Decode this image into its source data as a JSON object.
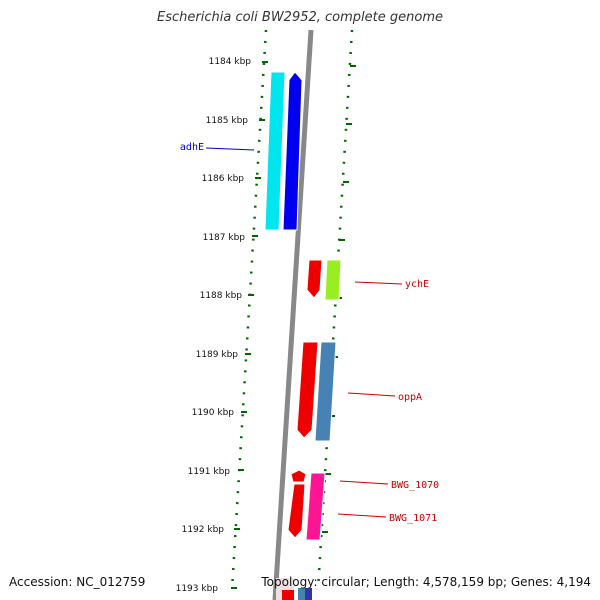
{
  "title": "Escherichia coli BW2952, complete genome",
  "footer": {
    "accession": "Accession: NC_012759",
    "topology": "Topology: circular; Length: 4,578,159 bp; Genes: 4,194"
  },
  "ticks": [
    "1184 kbp",
    "1185 kbp",
    "1186 kbp",
    "1187 kbp",
    "1188 kbp",
    "1189 kbp",
    "1190 kbp",
    "1191 kbp",
    "1192 kbp",
    "1193 kbp"
  ],
  "gene_labels": [
    {
      "text": "adhE",
      "color": "#0000cc"
    },
    {
      "text": "ychE",
      "color": "#cc0000"
    },
    {
      "text": "oppA",
      "color": "#cc0000"
    },
    {
      "text": "BWG_1070",
      "color": "#cc0000"
    },
    {
      "text": "BWG_1071",
      "color": "#cc0000"
    }
  ],
  "colors": {
    "backbone": "#808080",
    "tick_dots": "#006600",
    "cyan": "#00e5ee",
    "blue": "#0000ee",
    "red": "#ee0000",
    "green": "#99ee22",
    "steel": "#4682b4",
    "pink": "#ff1493"
  }
}
